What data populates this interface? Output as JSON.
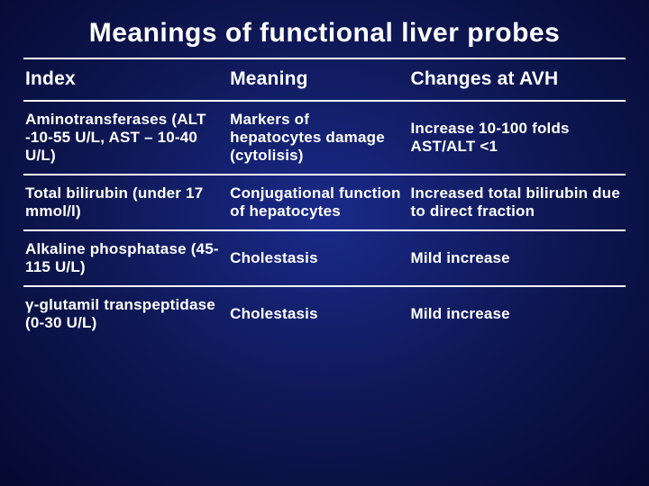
{
  "title": {
    "text": "Meanings of functional liver probes",
    "fontsize": 30,
    "color": "#ffffff"
  },
  "background": {
    "gradient_center": "#1a2a8a",
    "gradient_mid": "#0d1650",
    "gradient_edge": "#050830"
  },
  "table": {
    "border_color": "#ffffff",
    "border_width": 2,
    "header_fontsize": 21,
    "body_fontsize": 17,
    "text_color": "#ffffff",
    "columns": [
      {
        "key": "index",
        "label": "Index",
        "width_pct": 34
      },
      {
        "key": "meaning",
        "label": "Meaning",
        "width_pct": 30
      },
      {
        "key": "changes",
        "label": "Changes at AVH",
        "width_pct": 36
      }
    ],
    "rows": [
      {
        "index": "Aminotransferases (ALT -10-55 U/L, AST – 10-40 U/L)",
        "meaning": "Markers of hepatocytes damage (cytolisis)",
        "changes": "Increase 10-100 folds AST/ALT <1"
      },
      {
        "index": "Total bilirubin (under 17 mmol/l)",
        "meaning": "Conjugational function of hepatocytes",
        "changes": "Increased total bilirubin due to direct fraction"
      },
      {
        "index": "Alkaline phosphatase (45-115 U/L)",
        "meaning": "Cholestasis",
        "changes": "Mild increase"
      },
      {
        "index": "γ-glutamil transpeptidase (0-30 U/L)",
        "meaning": "Cholestasis",
        "changes": "Mild increase"
      }
    ]
  }
}
